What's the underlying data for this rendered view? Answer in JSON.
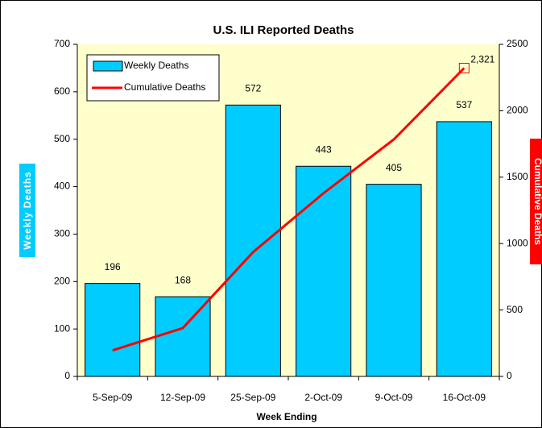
{
  "chart_data": {
    "type": "bar_line",
    "title": "U.S. ILI Reported Deaths",
    "x_label": "Week Ending",
    "y_label": "Weekly Deaths",
    "y2_label": "Cumulative Deaths",
    "categories": [
      "5-Sep-09",
      "12-Sep-09",
      "25-Sep-09",
      "2-Oct-09",
      "9-Oct-09",
      "16-Oct-09"
    ],
    "series": [
      {
        "name": "Weekly  Deaths",
        "type": "bar",
        "color": "#00ccff",
        "values": [
          196,
          168,
          572,
          443,
          405,
          537
        ]
      },
      {
        "name": "Cumulative Deaths",
        "type": "line",
        "axis": "y2",
        "color": "#ff0000",
        "values": [
          196,
          364,
          936,
          1379,
          1784,
          2321
        ],
        "value_labels": [
          null,
          null,
          null,
          null,
          null,
          "2,321"
        ]
      }
    ],
    "ylim": [
      0,
      700
    ],
    "yticks": [
      0,
      100,
      200,
      300,
      400,
      500,
      600,
      700
    ],
    "y2lim": [
      0,
      2500
    ],
    "y2ticks": [
      0,
      500,
      1000,
      1500,
      2000,
      2500
    ],
    "legend": "top-left"
  }
}
